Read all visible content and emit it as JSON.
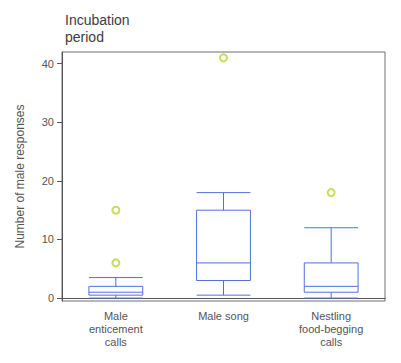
{
  "chart_data": {
    "type": "box",
    "title": "Incubation\nperiod",
    "ylabel": "Number of male responses",
    "categories": [
      "Male\nenticement\ncalls",
      "Male song",
      "Nestling\nfood-begging\ncalls"
    ],
    "boxes": [
      {
        "min": 0.0,
        "q1": 0.5,
        "median": 1.0,
        "q3": 2.0,
        "max": 3.5,
        "outliers": [
          6.0,
          15.0
        ]
      },
      {
        "min": 0.5,
        "q1": 3.0,
        "median": 6.0,
        "q3": 15.0,
        "max": 18.0,
        "outliers": [
          41.0
        ]
      },
      {
        "min": 0.0,
        "q1": 1.0,
        "median": 2.0,
        "q3": 6.0,
        "max": 12.0,
        "outliers": [
          18.0
        ]
      }
    ],
    "ylim": [
      -0.5,
      42
    ],
    "yticks": [
      0,
      10,
      20,
      30,
      40
    ],
    "grid": false
  }
}
